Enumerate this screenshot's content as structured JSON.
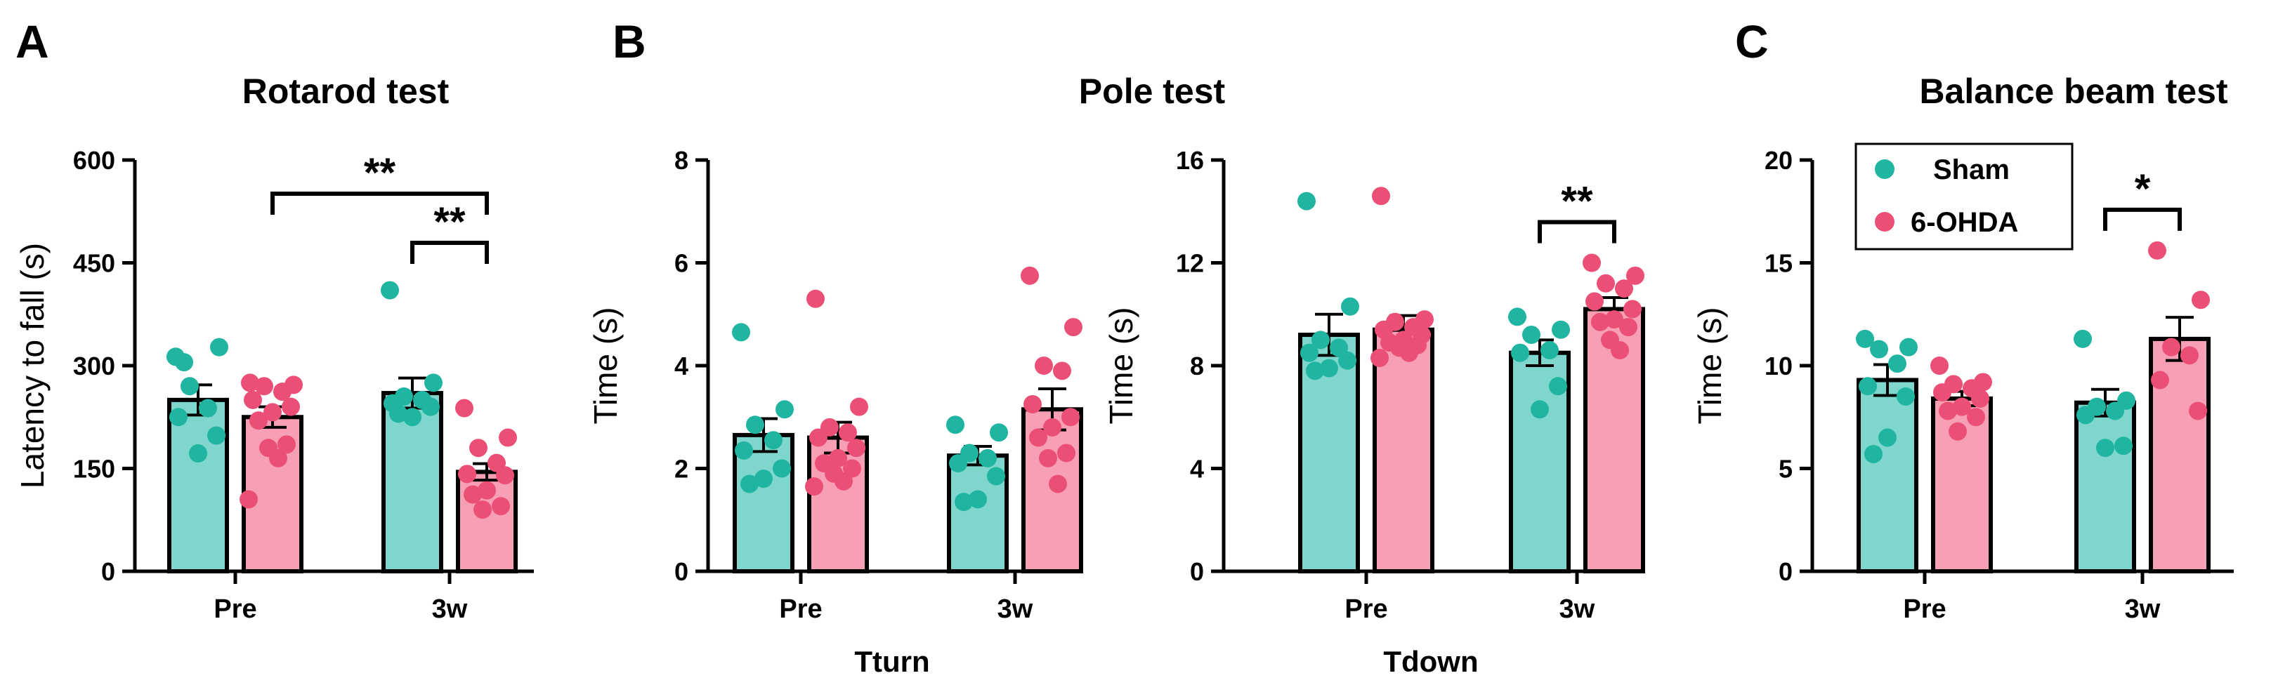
{
  "colors": {
    "sham": "#1FB5A1",
    "ohda": "#EC4F75",
    "sham_fill": "#7FD6CC",
    "ohda_fill": "#F7A0B5",
    "axis": "#000000"
  },
  "figure": {
    "panels": [
      {
        "letter": "A",
        "title": "Rotarod test"
      },
      {
        "letter": "B",
        "title": "Pole test"
      },
      {
        "letter": "C",
        "title": "Balance beam test"
      }
    ],
    "legend": {
      "items": [
        "Sham",
        "6-OHDA"
      ]
    }
  },
  "chart_data": [
    {
      "id": "rotarod",
      "type": "bar",
      "panel": "A",
      "title": "Rotarod test",
      "ylabel": "Latency to fall (s)",
      "xlabel": "",
      "ylim": [
        0,
        600
      ],
      "yticks": [
        0,
        150,
        300,
        450,
        600
      ],
      "categories": [
        "Pre",
        "3w"
      ],
      "series": [
        {
          "name": "Sham",
          "values": [
            250,
            260
          ],
          "errors": [
            22,
            22
          ],
          "points": [
            [
              313,
              327,
              270,
              238,
              225,
              198,
              172,
              305
            ],
            [
              410,
              275,
              255,
              250,
              245,
              240,
              225,
              230
            ]
          ]
        },
        {
          "name": "6-OHDA",
          "values": [
            225,
            145
          ],
          "errors": [
            15,
            12
          ],
          "points": [
            [
              275,
              272,
              270,
              262,
              250,
              240,
              232,
              220,
              185,
              180,
              165,
              105
            ],
            [
              238,
              195,
              180,
              158,
              142,
              140,
              118,
              112,
              95,
              90
            ]
          ]
        }
      ],
      "significance": [
        {
          "label": "**",
          "from": [
            0,
            1
          ],
          "to": [
            1,
            1
          ]
        },
        {
          "label": "**",
          "from": [
            1,
            0
          ],
          "to": [
            1,
            1
          ]
        }
      ]
    },
    {
      "id": "pole_tturn",
      "type": "bar",
      "panel": "B",
      "title": "Pole test",
      "ylabel": "Time (s)",
      "xlabel": "Tturn",
      "ylim": [
        0,
        8
      ],
      "yticks": [
        0,
        2,
        4,
        6,
        8
      ],
      "categories": [
        "Pre",
        "3w"
      ],
      "series": [
        {
          "name": "Sham",
          "values": [
            2.65,
            2.25
          ],
          "errors": [
            0.32,
            0.18
          ],
          "points": [
            [
              4.65,
              3.15,
              2.85,
              2.55,
              2.35,
              2.0,
              1.8,
              1.7
            ],
            [
              2.85,
              2.7,
              2.3,
              2.2,
              2.1,
              1.85,
              1.4,
              1.35
            ]
          ]
        },
        {
          "name": "6-OHDA",
          "values": [
            2.6,
            3.15
          ],
          "errors": [
            0.3,
            0.4
          ],
          "points": [
            [
              5.3,
              3.2,
              2.8,
              2.7,
              2.6,
              2.4,
              2.2,
              2.1,
              2.0,
              1.9,
              1.75,
              1.65
            ],
            [
              5.75,
              4.75,
              4.0,
              3.9,
              3.25,
              3.0,
              2.8,
              2.6,
              2.3,
              2.2,
              1.7
            ]
          ]
        }
      ],
      "significance": []
    },
    {
      "id": "pole_tdown",
      "type": "bar",
      "panel": "B",
      "title": "",
      "ylabel": "Time (s)",
      "xlabel": "Tdown",
      "ylim": [
        0,
        16
      ],
      "yticks": [
        0,
        4,
        8,
        12,
        16
      ],
      "categories": [
        "Pre",
        "3w"
      ],
      "series": [
        {
          "name": "Sham",
          "values": [
            9.2,
            8.5
          ],
          "errors": [
            0.8,
            0.5
          ],
          "points": [
            [
              14.4,
              10.3,
              9.0,
              8.7,
              8.5,
              8.2,
              7.9,
              7.8
            ],
            [
              9.9,
              9.4,
              9.2,
              8.6,
              8.5,
              7.2,
              6.3
            ]
          ]
        },
        {
          "name": "6-OHDA",
          "values": [
            9.4,
            10.2
          ],
          "errors": [
            0.55,
            0.45
          ],
          "points": [
            [
              14.6,
              9.8,
              9.7,
              9.5,
              9.4,
              9.2,
              9.0,
              8.9,
              8.8,
              8.7,
              8.5,
              8.3
            ],
            [
              12.0,
              11.5,
              11.2,
              11.0,
              10.5,
              10.2,
              9.8,
              9.7,
              9.5,
              9.0,
              8.6
            ]
          ]
        }
      ],
      "significance": [
        {
          "label": "**",
          "from": [
            1,
            0
          ],
          "to": [
            1,
            1
          ]
        }
      ]
    },
    {
      "id": "balance_beam",
      "type": "bar",
      "panel": "C",
      "title": "Balance beam test",
      "ylabel": "Time (s)",
      "xlabel": "",
      "ylim": [
        0,
        20
      ],
      "yticks": [
        0,
        5,
        10,
        15,
        20
      ],
      "categories": [
        "Pre",
        "3w"
      ],
      "series": [
        {
          "name": "Sham",
          "values": [
            9.3,
            8.2
          ],
          "errors": [
            0.75,
            0.65
          ],
          "points": [
            [
              11.3,
              10.9,
              10.8,
              10.1,
              9.0,
              8.5,
              6.5,
              5.7
            ],
            [
              11.3,
              8.3,
              8.0,
              7.8,
              7.6,
              6.1,
              6.0
            ]
          ]
        },
        {
          "name": "6-OHDA",
          "values": [
            8.4,
            11.3
          ],
          "errors": [
            0.35,
            1.05
          ],
          "points": [
            [
              10.0,
              9.2,
              9.1,
              8.9,
              8.7,
              8.4,
              8.0,
              7.8,
              7.5,
              6.8
            ],
            [
              15.6,
              13.2,
              10.9,
              10.5,
              9.3,
              7.8
            ]
          ]
        }
      ],
      "significance": [
        {
          "label": "*",
          "from": [
            1,
            0
          ],
          "to": [
            1,
            1
          ]
        }
      ]
    }
  ]
}
